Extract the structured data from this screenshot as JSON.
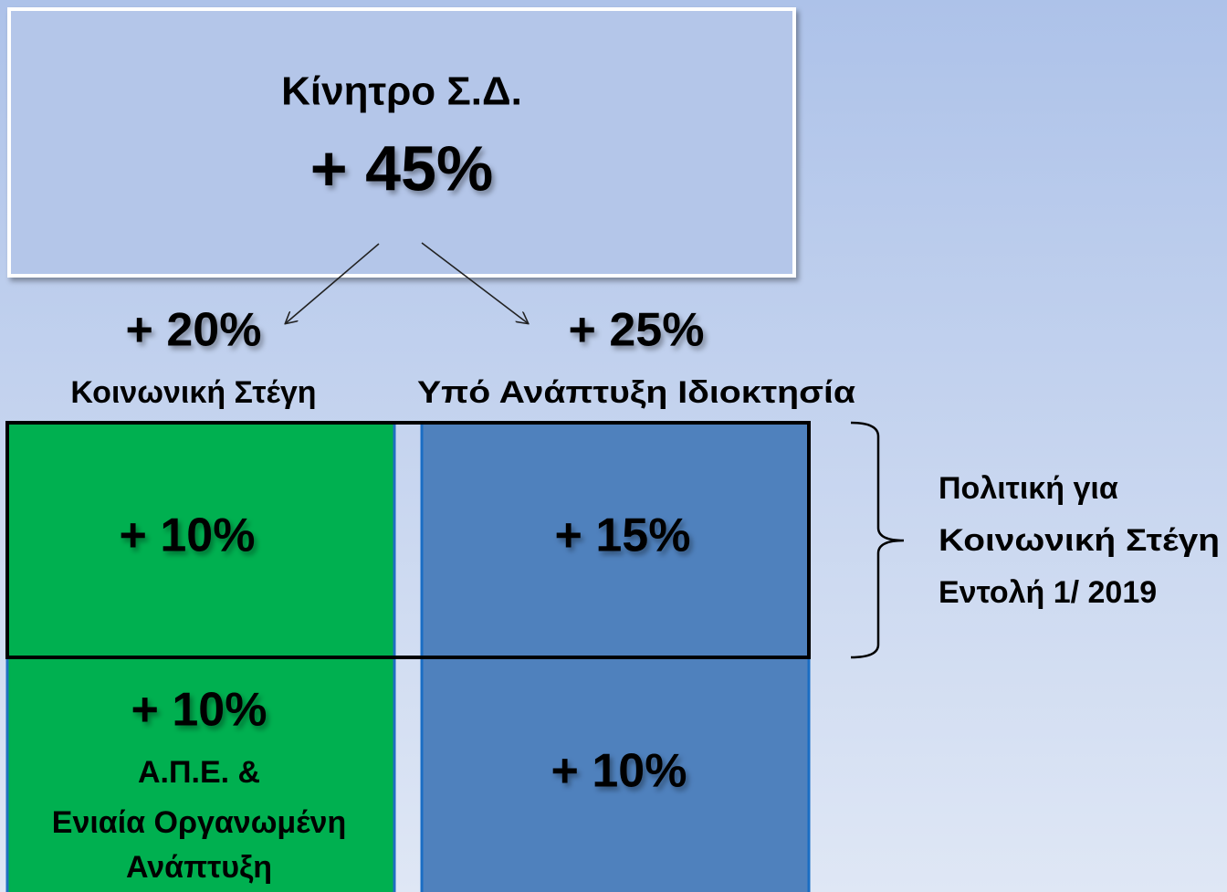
{
  "top": {
    "title": "Κίνητρο Σ.Δ.",
    "value": "+ 45%"
  },
  "branches": [
    {
      "value": "+ 20%",
      "label": "Κοινωνική Στέγη"
    },
    {
      "value": "+ 25%",
      "label": "Υπό Ανάπτυξη Ιδιοκτησία"
    }
  ],
  "cells": {
    "green_top": "+ 10%",
    "blue_top": "+ 15%",
    "green_bottom": {
      "value": "+ 10%",
      "lines": [
        "Α.Π.Ε. &",
        "Ενιαία Οργανωμένη",
        "Ανάπτυξη"
      ]
    },
    "blue_bottom": "+ 10%"
  },
  "bracket_note": [
    "Πολιτική για",
    "Κοινωνική Στέγη",
    "Εντολή 1/ 2019"
  ]
}
